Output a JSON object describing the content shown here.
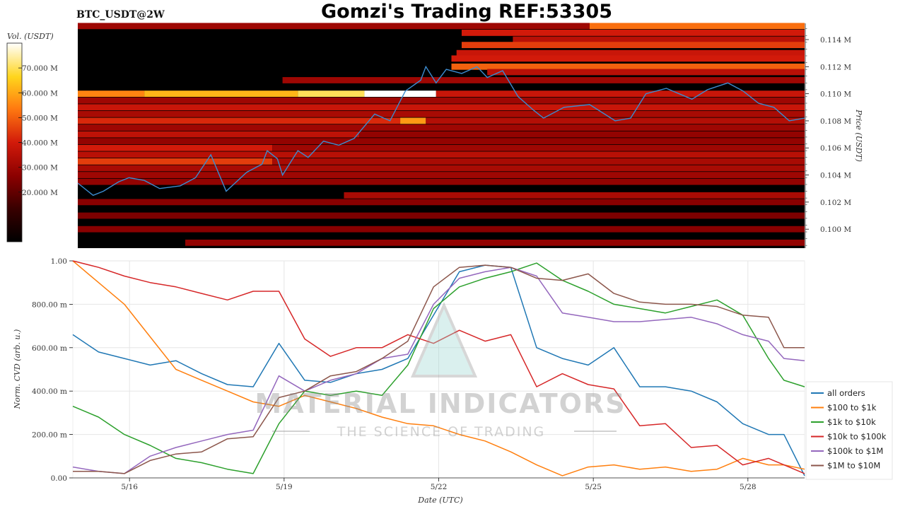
{
  "header": {
    "symbol": "BTC_USDT@2W",
    "title": "Gomzi's Trading REF:53305"
  },
  "watermark": {
    "brand": "MATERIAL INDICATORS",
    "tagline": "THE SCIENCE OF TRADING"
  },
  "chart_data": [
    {
      "type": "heatmap",
      "colorbar": {
        "label": "Vol. (USDT)",
        "ticks": [
          "20.000 M",
          "30.000 M",
          "40.000 M",
          "50.000 M",
          "60.000 M",
          "70.000 M"
        ],
        "tick_values": [
          20,
          30,
          40,
          50,
          60,
          70
        ],
        "range": [
          0,
          80
        ],
        "colormap": [
          "#000000",
          "#3a0000",
          "#8b0000",
          "#d21a0a",
          "#ff7a10",
          "#ffd51c",
          "#ffffff"
        ]
      },
      "ylabel": "Price (USDT)",
      "yticks": [
        "0.100 M",
        "0.102 M",
        "0.104 M",
        "0.106 M",
        "0.108 M",
        "0.110 M",
        "0.112 M",
        "0.114 M"
      ],
      "ytick_values": [
        0.1,
        0.102,
        0.104,
        0.106,
        0.108,
        0.11,
        0.112,
        0.114
      ],
      "ylim": [
        0.0986,
        0.1152
      ],
      "xlim": [
        0,
        14.2
      ],
      "levels": [
        {
          "p": 0.115,
          "v": [
            [
              0,
              10,
              30
            ],
            [
              10,
              14.2,
              52
            ]
          ]
        },
        {
          "p": 0.1145,
          "v": [
            [
              7.5,
              14.2,
              40
            ]
          ]
        },
        {
          "p": 0.114,
          "v": [
            [
              8.5,
              14.2,
              35
            ]
          ]
        },
        {
          "p": 0.1136,
          "v": [
            [
              7.5,
              14.2,
              45
            ]
          ]
        },
        {
          "p": 0.113,
          "v": [
            [
              7.4,
              14.2,
              38
            ]
          ]
        },
        {
          "p": 0.1126,
          "v": [
            [
              7.3,
              14.2,
              40
            ]
          ]
        },
        {
          "p": 0.112,
          "v": [
            [
              7.3,
              14.2,
              50
            ]
          ]
        },
        {
          "p": 0.1116,
          "v": [
            [
              8.0,
              14.2,
              35
            ]
          ]
        },
        {
          "p": 0.111,
          "v": [
            [
              4.0,
              14.2,
              30
            ]
          ]
        },
        {
          "p": 0.11,
          "v": [
            [
              0,
              1.3,
              55
            ],
            [
              1.3,
              4.3,
              62
            ],
            [
              4.3,
              5.6,
              70
            ],
            [
              5.6,
              7.0,
              80
            ],
            [
              7.0,
              14.2,
              38
            ]
          ]
        },
        {
          "p": 0.1095,
          "v": [
            [
              0,
              14.2,
              30
            ]
          ]
        },
        {
          "p": 0.109,
          "v": [
            [
              0,
              14.2,
              38
            ]
          ]
        },
        {
          "p": 0.1085,
          "v": [
            [
              0,
              14.2,
              32
            ]
          ]
        },
        {
          "p": 0.108,
          "v": [
            [
              0,
              6.3,
              42
            ],
            [
              6.3,
              6.8,
              58
            ],
            [
              6.8,
              14.2,
              34
            ]
          ]
        },
        {
          "p": 0.1075,
          "v": [
            [
              0,
              14.2,
              30
            ]
          ]
        },
        {
          "p": 0.107,
          "v": [
            [
              0,
              5.5,
              36
            ],
            [
              5.5,
              14.2,
              28
            ]
          ]
        },
        {
          "p": 0.1065,
          "v": [
            [
              0,
              14.2,
              28
            ]
          ]
        },
        {
          "p": 0.106,
          "v": [
            [
              0,
              3.8,
              40
            ],
            [
              3.8,
              14.2,
              30
            ]
          ]
        },
        {
          "p": 0.1055,
          "v": [
            [
              0,
              14.2,
              35
            ]
          ]
        },
        {
          "p": 0.105,
          "v": [
            [
              0,
              3.8,
              45
            ],
            [
              3.8,
              14.2,
              32
            ]
          ]
        },
        {
          "p": 0.1045,
          "v": [
            [
              0,
              14.2,
              32
            ]
          ]
        },
        {
          "p": 0.104,
          "v": [
            [
              0,
              14.2,
              30
            ]
          ]
        },
        {
          "p": 0.1035,
          "v": [
            [
              0,
              14.2,
              28
            ]
          ]
        },
        {
          "p": 0.1025,
          "v": [
            [
              5.2,
              14.2,
              32
            ]
          ]
        },
        {
          "p": 0.102,
          "v": [
            [
              0,
              14.2,
              26
            ]
          ]
        },
        {
          "p": 0.101,
          "v": [
            [
              0,
              14.2,
              24
            ]
          ]
        },
        {
          "p": 0.1,
          "v": [
            [
              0,
              14.2,
              26
            ]
          ]
        },
        {
          "p": 0.099,
          "v": [
            [
              2.1,
              14.2,
              28
            ]
          ]
        }
      ],
      "price": {
        "t": [
          0,
          0.3,
          0.5,
          0.8,
          1.0,
          1.3,
          1.6,
          2.0,
          2.3,
          2.6,
          2.9,
          3.3,
          3.6,
          3.7,
          3.9,
          4.0,
          4.3,
          4.5,
          4.8,
          5.1,
          5.4,
          5.8,
          6.1,
          6.4,
          6.7,
          6.8,
          7.0,
          7.2,
          7.5,
          7.8,
          8.0,
          8.3,
          8.6,
          8.9,
          9.1,
          9.5,
          10.0,
          10.5,
          10.8,
          11.1,
          11.5,
          12.0,
          12.3,
          12.7,
          13.0,
          13.3,
          13.6,
          13.9,
          14.2
        ],
        "v": [
          0.1034,
          0.1025,
          0.1028,
          0.1035,
          0.1038,
          0.1036,
          0.103,
          0.1032,
          0.1038,
          0.1055,
          0.1028,
          0.1042,
          0.1048,
          0.1058,
          0.1052,
          0.104,
          0.1058,
          0.1053,
          0.1065,
          0.1062,
          0.1067,
          0.1085,
          0.108,
          0.1102,
          0.111,
          0.112,
          0.1108,
          0.1118,
          0.1115,
          0.112,
          0.1112,
          0.1117,
          0.1098,
          0.1088,
          0.1082,
          0.109,
          0.1092,
          0.108,
          0.1082,
          0.11,
          0.1104,
          0.1096,
          0.1103,
          0.1108,
          0.1102,
          0.1093,
          0.109,
          0.108,
          0.1082
        ]
      }
    },
    {
      "type": "line",
      "xlabel": "Date (UTC)",
      "ylabel": "Norm. CVD (arb. u.)",
      "xticks": [
        "5/16",
        "5/19",
        "5/22",
        "5/25",
        "5/28"
      ],
      "xtick_values": [
        1.1,
        4.1,
        7.1,
        10.1,
        13.1
      ],
      "xlim": [
        0,
        14.2
      ],
      "yticks": [
        "0.00",
        "200.00 m",
        "400.00 m",
        "600.00 m",
        "800.00 m",
        "1.00"
      ],
      "ytick_values": [
        0,
        0.2,
        0.4,
        0.6,
        0.8,
        1.0
      ],
      "ylim": [
        0,
        1
      ],
      "grid": true,
      "legend_position": "right",
      "x": [
        0,
        0.5,
        1.0,
        1.5,
        2.0,
        2.5,
        3.0,
        3.5,
        4.0,
        4.5,
        5.0,
        5.5,
        6.0,
        6.5,
        7.0,
        7.5,
        8.0,
        8.5,
        9.0,
        9.5,
        10.0,
        10.5,
        11.0,
        11.5,
        12.0,
        12.5,
        13.0,
        13.5,
        13.8,
        14.2
      ],
      "series": [
        {
          "name": "all orders",
          "color": "#1f77b4",
          "values": [
            0.66,
            0.58,
            0.55,
            0.52,
            0.54,
            0.48,
            0.43,
            0.42,
            0.62,
            0.45,
            0.44,
            0.48,
            0.5,
            0.55,
            0.75,
            0.95,
            0.98,
            0.97,
            0.6,
            0.55,
            0.52,
            0.6,
            0.42,
            0.42,
            0.4,
            0.35,
            0.25,
            0.2,
            0.2,
            0.01
          ]
        },
        {
          "name": "$100 to $1k",
          "color": "#ff7f0e",
          "values": [
            1.0,
            0.9,
            0.8,
            0.65,
            0.5,
            0.45,
            0.4,
            0.35,
            0.33,
            0.38,
            0.35,
            0.32,
            0.28,
            0.25,
            0.24,
            0.2,
            0.17,
            0.12,
            0.06,
            0.01,
            0.05,
            0.06,
            0.04,
            0.05,
            0.03,
            0.04,
            0.09,
            0.06,
            0.06,
            0.04
          ]
        },
        {
          "name": "$1k to $10k",
          "color": "#2ca02c",
          "values": [
            0.33,
            0.28,
            0.2,
            0.15,
            0.09,
            0.07,
            0.04,
            0.02,
            0.25,
            0.4,
            0.38,
            0.4,
            0.38,
            0.52,
            0.78,
            0.88,
            0.92,
            0.95,
            0.99,
            0.91,
            0.86,
            0.8,
            0.78,
            0.76,
            0.79,
            0.82,
            0.75,
            0.55,
            0.45,
            0.42
          ]
        },
        {
          "name": "$10k to $100k",
          "color": "#d62728",
          "values": [
            1.0,
            0.97,
            0.93,
            0.9,
            0.88,
            0.85,
            0.82,
            0.86,
            0.86,
            0.64,
            0.56,
            0.6,
            0.6,
            0.66,
            0.62,
            0.68,
            0.63,
            0.66,
            0.42,
            0.48,
            0.43,
            0.41,
            0.24,
            0.25,
            0.14,
            0.15,
            0.06,
            0.09,
            0.06,
            0.02
          ]
        },
        {
          "name": "$100k to $1M",
          "color": "#9467bd",
          "values": [
            0.05,
            0.03,
            0.02,
            0.1,
            0.14,
            0.17,
            0.2,
            0.22,
            0.47,
            0.4,
            0.45,
            0.48,
            0.55,
            0.57,
            0.8,
            0.92,
            0.95,
            0.97,
            0.93,
            0.76,
            0.74,
            0.72,
            0.72,
            0.73,
            0.74,
            0.71,
            0.66,
            0.63,
            0.55,
            0.54
          ]
        },
        {
          "name": "$1M to $10M",
          "color": "#8c564b",
          "values": [
            0.03,
            0.03,
            0.02,
            0.08,
            0.11,
            0.12,
            0.18,
            0.19,
            0.37,
            0.4,
            0.47,
            0.49,
            0.55,
            0.63,
            0.88,
            0.97,
            0.98,
            0.97,
            0.92,
            0.91,
            0.94,
            0.85,
            0.81,
            0.8,
            0.8,
            0.79,
            0.75,
            0.74,
            0.6,
            0.6
          ]
        }
      ]
    }
  ]
}
